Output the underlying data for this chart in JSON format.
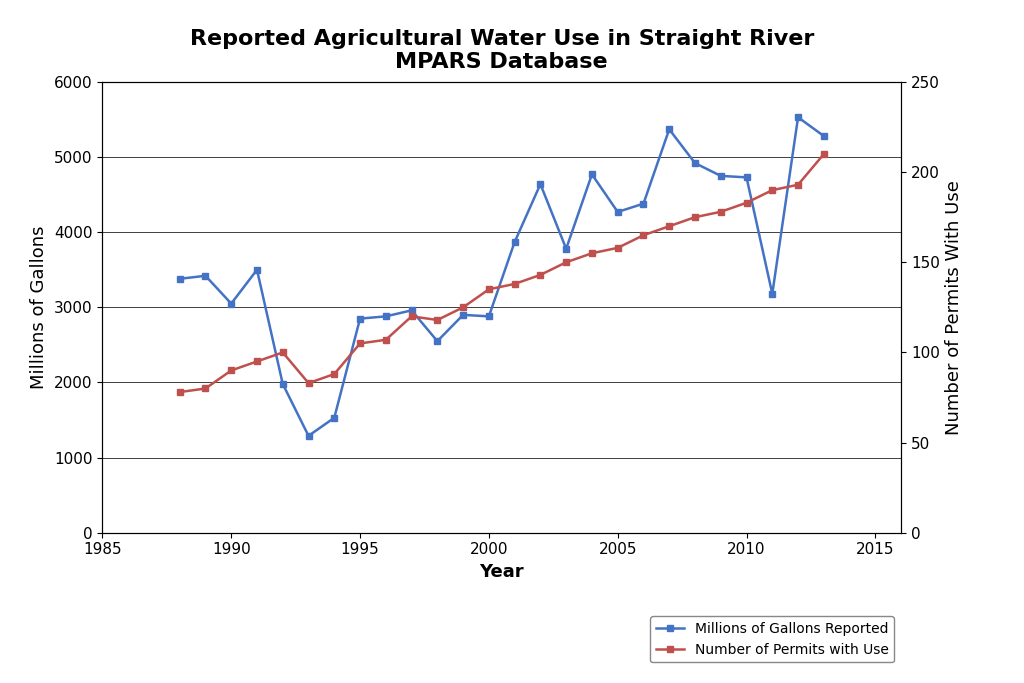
{
  "title": "Reported Agricultural Water Use in Straight River\nMPARS Database",
  "xlabel": "Year",
  "ylabel_left": "Millions of Gallons",
  "ylabel_right": "Number of Permits With Use",
  "years": [
    1988,
    1989,
    1990,
    1991,
    1992,
    1993,
    1994,
    1995,
    1996,
    1997,
    1998,
    1999,
    2000,
    2001,
    2002,
    2003,
    2004,
    2005,
    2006,
    2007,
    2008,
    2009,
    2010,
    2011,
    2012,
    2013
  ],
  "gallons": [
    3380,
    3420,
    3050,
    3500,
    1980,
    1290,
    1530,
    2850,
    2880,
    2960,
    2550,
    2900,
    2880,
    3870,
    4640,
    3780,
    4770,
    4270,
    4380,
    5370,
    4920,
    4750,
    4730,
    3180,
    5530,
    5280
  ],
  "permits": [
    78,
    80,
    90,
    95,
    100,
    83,
    88,
    105,
    107,
    120,
    118,
    125,
    135,
    138,
    143,
    150,
    155,
    158,
    165,
    170,
    175,
    178,
    183,
    190,
    193,
    210
  ],
  "gallons_color": "#4472C4",
  "permits_color": "#C0504D",
  "marker": "s",
  "linewidth": 1.8,
  "markersize": 5,
  "xlim": [
    1985,
    2016
  ],
  "ylim_left": [
    0,
    6000
  ],
  "ylim_right": [
    0,
    250
  ],
  "xticks": [
    1985,
    1990,
    1995,
    2000,
    2005,
    2010,
    2015
  ],
  "yticks_left": [
    0,
    1000,
    2000,
    3000,
    4000,
    5000,
    6000
  ],
  "yticks_right": [
    0,
    50,
    100,
    150,
    200,
    250
  ],
  "legend_gallons": "Millions of Gallons Reported",
  "legend_permits": "Number of Permits with Use",
  "fig_facecolor": "#FFFFFF",
  "plot_facecolor": "#FFFFFF",
  "grid_color": "#404040",
  "title_fontsize": 16,
  "label_fontsize": 13,
  "tick_fontsize": 11,
  "legend_fontsize": 10
}
